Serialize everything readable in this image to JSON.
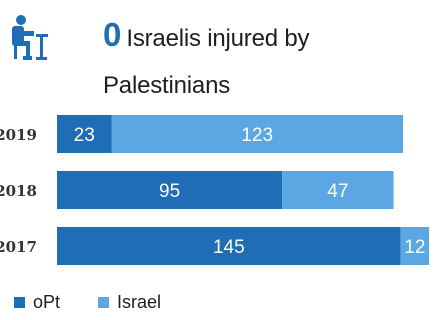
{
  "header": {
    "number": "0",
    "title_line1": "Israelis injured by",
    "title_line2": "Palestinians"
  },
  "icon": {
    "name": "seated-person-icon",
    "color": "#1f6db5"
  },
  "chart_data": {
    "type": "bar",
    "orientation": "horizontal",
    "stacked": true,
    "categories": [
      "2019",
      "2018",
      "2017"
    ],
    "series": [
      {
        "name": "oPt",
        "color": "#1f6db5",
        "values": [
          23,
          95,
          145
        ]
      },
      {
        "name": "Israel",
        "color": "#5ba7e4",
        "values": [
          123,
          47,
          12
        ]
      }
    ],
    "data_labels": [
      [
        "23",
        "95",
        "145"
      ],
      [
        "123",
        "47",
        "12"
      ]
    ],
    "legend_position": "bottom-left",
    "grid": false
  }
}
